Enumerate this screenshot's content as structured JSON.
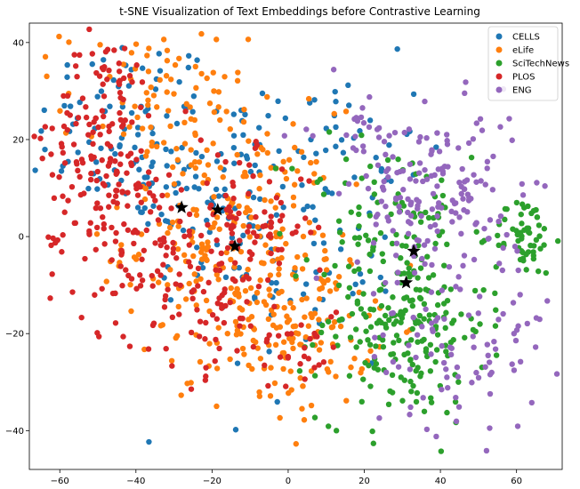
{
  "chart_data": {
    "type": "scatter",
    "title": "t-SNE Visualization of Text Embeddings before Contrastive Learning",
    "xlabel": "",
    "ylabel": "",
    "xlim": [
      -68,
      72
    ],
    "ylim": [
      -48,
      44
    ],
    "xticks": [
      -60,
      -40,
      -20,
      0,
      20,
      40,
      60
    ],
    "yticks": [
      -40,
      -20,
      0,
      20,
      40
    ],
    "grid": false,
    "legend_position": "top-right",
    "series": [
      {
        "name": "CELLS",
        "color": "#1f77b4",
        "clusters": [
          {
            "cx": -42,
            "cy": 22,
            "sx": 12,
            "sy": 10,
            "n": 90
          },
          {
            "cx": -18,
            "cy": 8,
            "sx": 12,
            "sy": 12,
            "n": 90
          },
          {
            "cx": 5,
            "cy": -5,
            "sx": 12,
            "sy": 15,
            "n": 60
          },
          {
            "cx": 15,
            "cy": 20,
            "sx": 10,
            "sy": 8,
            "n": 30
          }
        ]
      },
      {
        "name": "eLife",
        "color": "#ff7f0e",
        "clusters": [
          {
            "cx": -15,
            "cy": 0,
            "sx": 14,
            "sy": 13,
            "n": 230
          },
          {
            "cx": 2,
            "cy": -18,
            "sx": 10,
            "sy": 9,
            "n": 140
          },
          {
            "cx": -35,
            "cy": 28,
            "sx": 12,
            "sy": 8,
            "n": 70
          }
        ]
      },
      {
        "name": "SciTechNews",
        "color": "#2ca02c",
        "clusters": [
          {
            "cx": 30,
            "cy": -18,
            "sx": 11,
            "sy": 10,
            "n": 220
          },
          {
            "cx": 62,
            "cy": 0,
            "sx": 4,
            "sy": 4,
            "n": 60
          },
          {
            "cx": 25,
            "cy": 5,
            "sx": 12,
            "sy": 8,
            "n": 60
          }
        ]
      },
      {
        "name": "PLOS",
        "color": "#d62728",
        "clusters": [
          {
            "cx": -48,
            "cy": 22,
            "sx": 7,
            "sy": 10,
            "n": 130
          },
          {
            "cx": -40,
            "cy": 0,
            "sx": 12,
            "sy": 10,
            "n": 120
          },
          {
            "cx": -10,
            "cy": 2,
            "sx": 8,
            "sy": 7,
            "n": 80
          },
          {
            "cx": -22,
            "cy": -15,
            "sx": 8,
            "sy": 7,
            "n": 50
          },
          {
            "cx": 3,
            "cy": -22,
            "sx": 6,
            "sy": 5,
            "n": 30
          }
        ]
      },
      {
        "name": "ENG",
        "color": "#9467bd",
        "clusters": [
          {
            "cx": 40,
            "cy": 8,
            "sx": 11,
            "sy": 9,
            "n": 160
          },
          {
            "cx": 45,
            "cy": -22,
            "sx": 12,
            "sy": 9,
            "n": 90
          },
          {
            "cx": 20,
            "cy": 22,
            "sx": 7,
            "sy": 5,
            "n": 30
          }
        ]
      }
    ],
    "markers": [
      {
        "x": -28,
        "y": 6
      },
      {
        "x": -18.5,
        "y": 5.5
      },
      {
        "x": -14,
        "y": -2
      },
      {
        "x": 33,
        "y": -3
      },
      {
        "x": 31,
        "y": -9.5
      }
    ]
  }
}
